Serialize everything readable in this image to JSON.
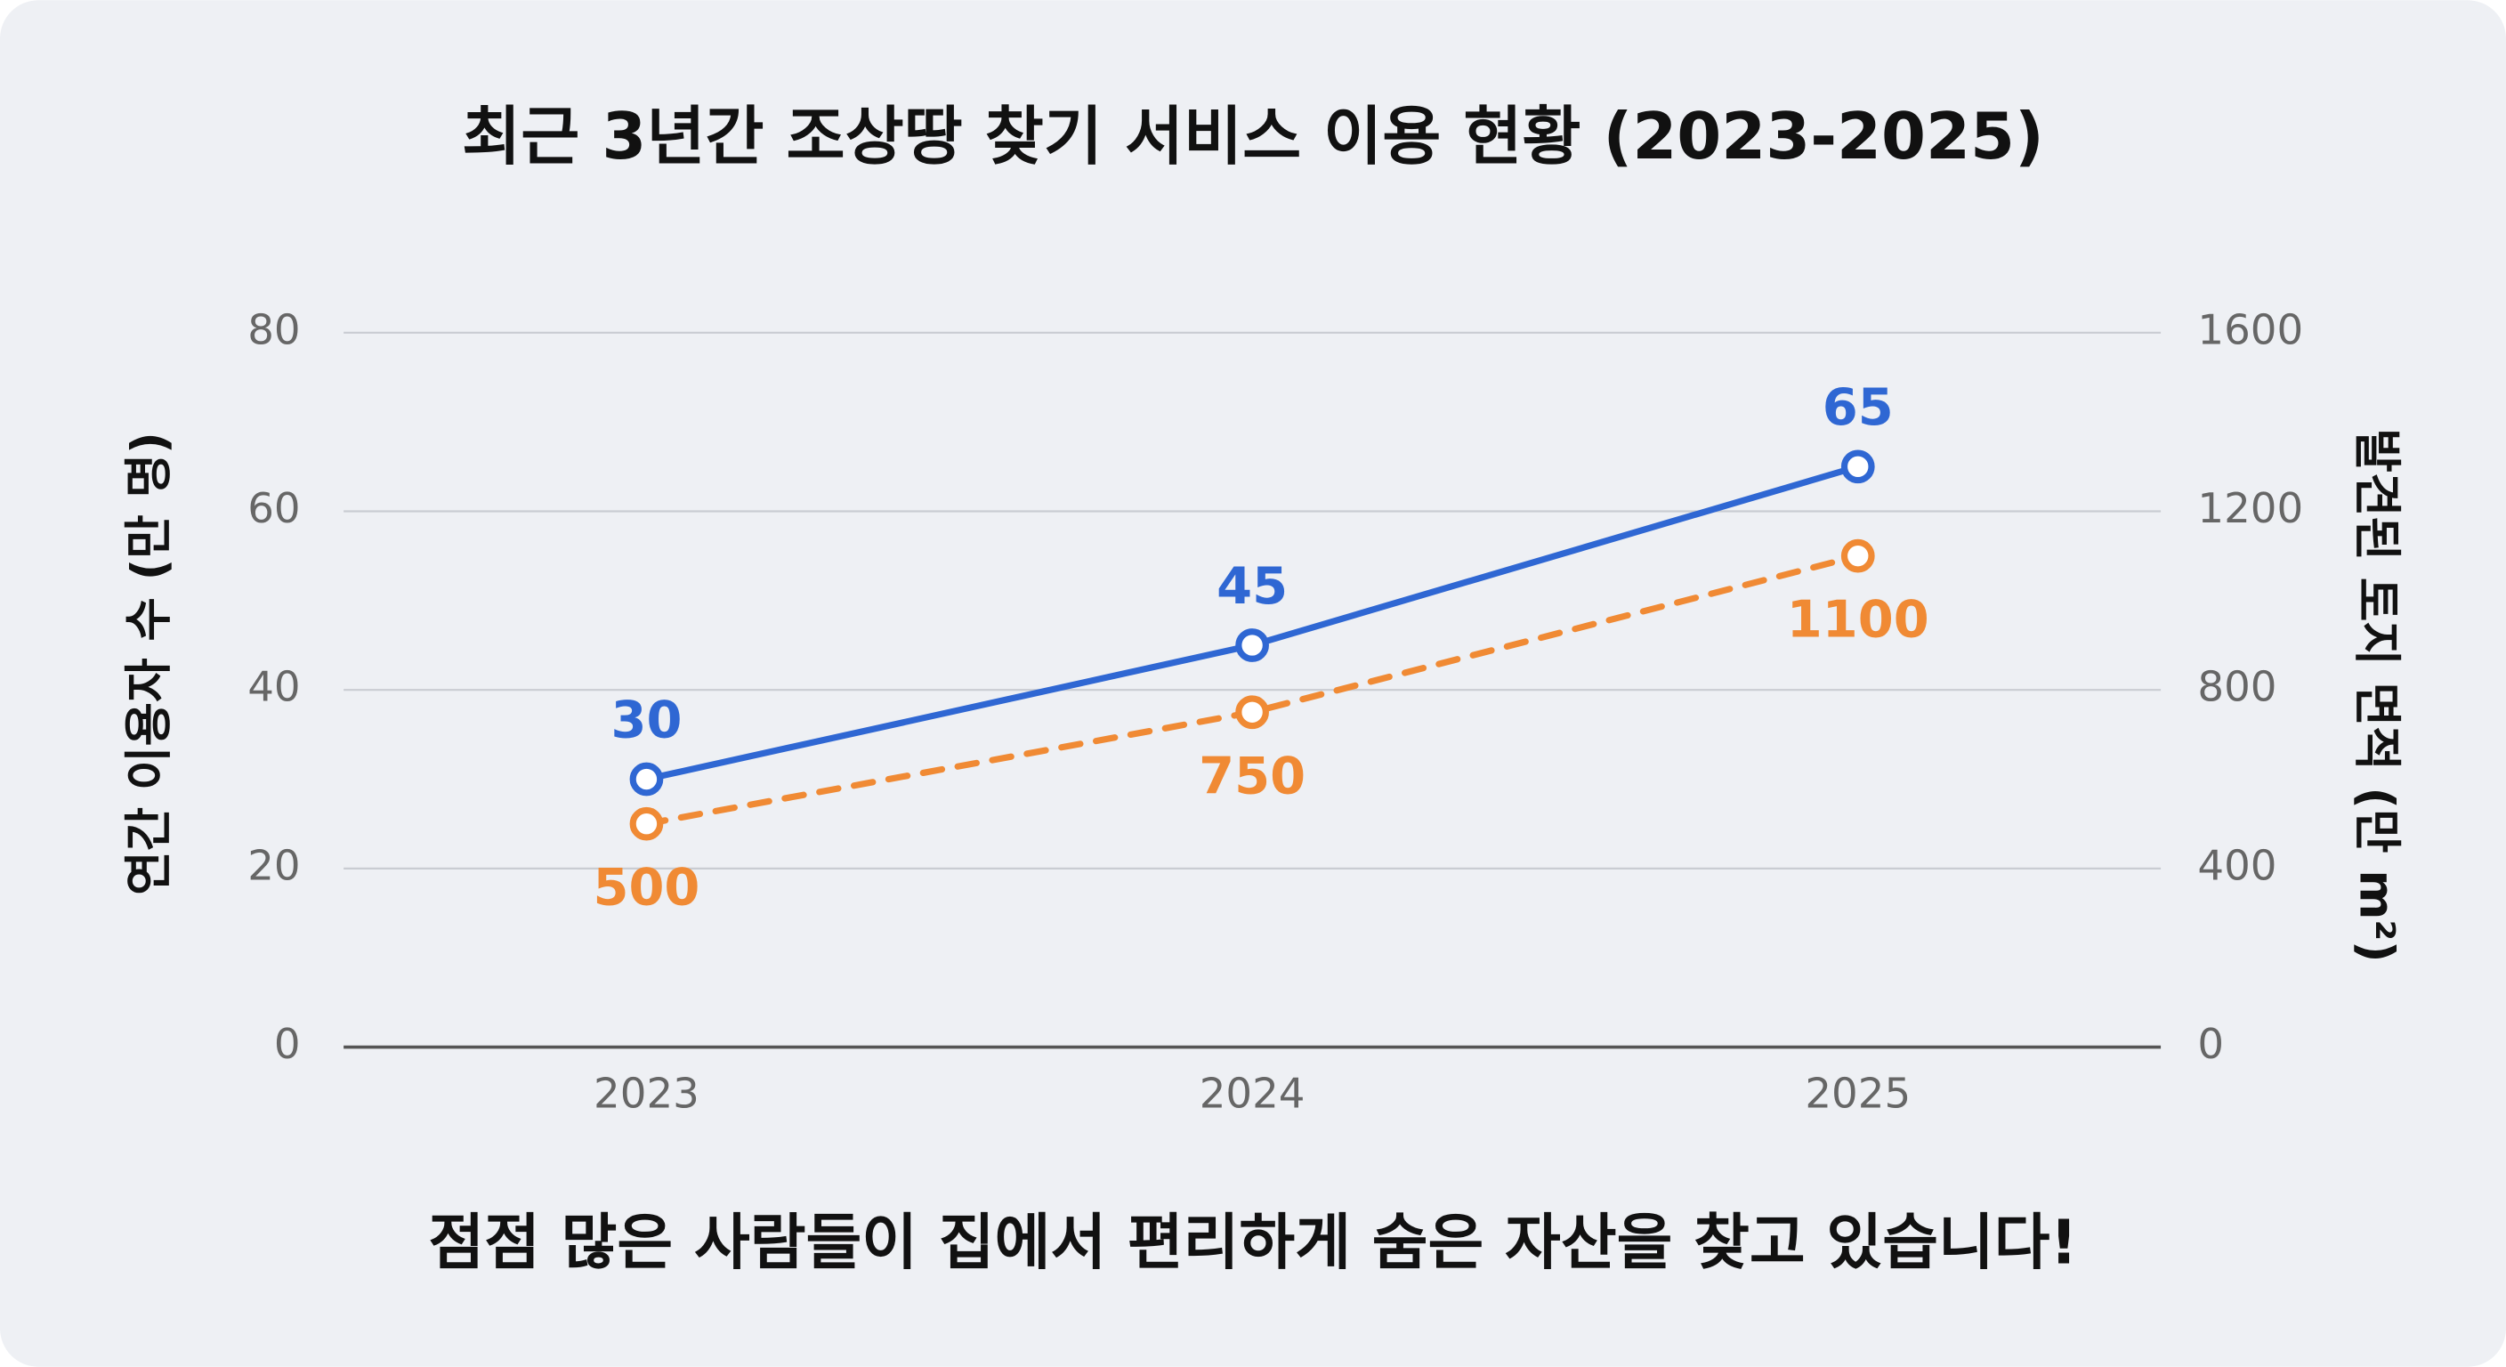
{
  "chart_data": {
    "type": "line",
    "title": "최근 3년간 조상땅 찾기 서비스 이용 현황 (2023-2025)",
    "y_label": "연간 이용자 수 (만 명)",
    "y2_label": "발견된 토지 면적 (만 m²)",
    "footnote": "점점 많은 사람들이 집에서 편리하게 숨은 자산을 찾고 있습니다!",
    "categories": [
      "2023",
      "2024",
      "2025"
    ],
    "series": [
      {
        "color": "#2f67d3",
        "values": [
          30,
          45,
          65
        ],
        "axis": "y"
      },
      {
        "color": "#f08a34",
        "values": [
          500,
          750,
          1100
        ],
        "axis": "y2",
        "dashed": true
      }
    ],
    "ylim": [
      0,
      80
    ],
    "yticks": [
      0,
      20,
      40,
      60,
      80
    ],
    "y2lim": [
      0,
      1600
    ],
    "y2ticks": [
      0,
      400,
      800,
      1200,
      1600
    ],
    "grid": true
  }
}
